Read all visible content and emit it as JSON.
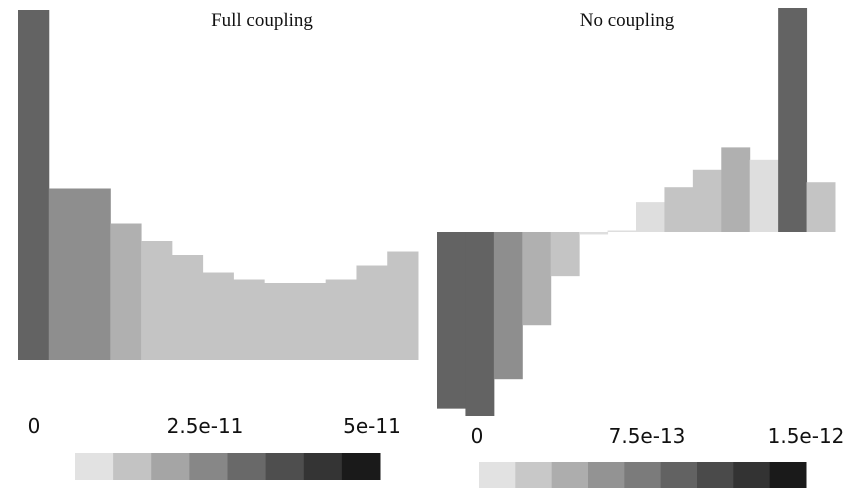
{
  "chart_data": [
    {
      "type": "bar",
      "title": "Full coupling",
      "values": [
        1.0,
        0.49,
        0.49,
        0.39,
        0.34,
        0.3,
        0.25,
        0.23,
        0.22,
        0.22,
        0.23,
        0.27,
        0.31
      ],
      "colormap_levels": [
        1,
        2,
        2,
        3,
        4,
        4,
        4,
        4,
        4,
        4,
        4,
        4,
        4
      ],
      "ylim": [
        0,
        1
      ],
      "colorbar": {
        "tick_labels": [
          "0",
          "2.5e-11",
          "5e-11"
        ],
        "colors": [
          "#e2e2e2",
          "#c3c3c3",
          "#a5a5a5",
          "#878787",
          "#696969",
          "#4e4e4e",
          "#343434",
          "#1a1a1a"
        ]
      }
    },
    {
      "type": "bar",
      "title": "No coupling",
      "values": [
        -0.72,
        -0.75,
        -0.6,
        -0.38,
        -0.18,
        -0.01,
        0.0,
        0.12,
        0.18,
        0.25,
        0.34,
        0.29,
        0.9,
        0.2
      ],
      "colormap_levels": [
        1,
        1,
        2,
        3,
        4,
        5,
        5,
        5,
        4,
        4,
        3,
        5,
        1,
        4
      ],
      "ylim": [
        -0.75,
        0.9
      ],
      "colorbar": {
        "tick_labels": [
          "0",
          "7.5e-13",
          "1.5e-12"
        ],
        "colors": [
          "#e2e2e2",
          "#c8c8c8",
          "#adadad",
          "#939393",
          "#7b7b7b",
          "#626262",
          "#4a4a4a",
          "#333333",
          "#1a1a1a"
        ]
      }
    }
  ],
  "palette": [
    "#636363",
    "#8e8e8e",
    "#b0b0b0",
    "#c4c4c4",
    "#dedede"
  ]
}
